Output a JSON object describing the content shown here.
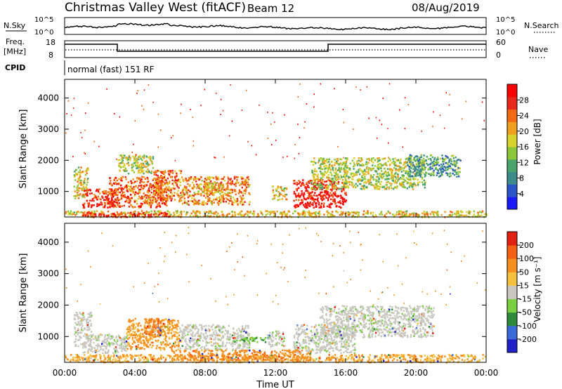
{
  "header": {
    "station": "Christmas Valley West (fitACF)",
    "beam": "Beam 12",
    "date": "08/Aug/2019"
  },
  "top_panels": {
    "nsky_label": "N.Sky",
    "nsky_top": "10^5",
    "nsky_bottom": "10^0",
    "nsearch_label": "N.Search",
    "nsearch_top": "10^5",
    "nsearch_bottom": "10^0",
    "freq_label": "Freq.",
    "freq_unit": "[MHz]",
    "freq_top": "18",
    "freq_bottom": "8",
    "nave_label": "Nave",
    "nave_top": "60",
    "nave_bottom": "0",
    "cpid_label": "CPID",
    "cpid_value": "normal (fast) 151 RF"
  },
  "chart_data": [
    {
      "type": "heatmap",
      "name": "power",
      "ylabel": "Slant Range [km]",
      "yticks": [
        "1000",
        "2000",
        "3000",
        "4000"
      ],
      "ylim": [
        180,
        4600
      ],
      "colorbar_label": "Power [dB]",
      "colorbar_ticks": [
        "4",
        "8",
        "12",
        "16",
        "20",
        "24",
        "28"
      ],
      "colorbar_colors": [
        "#1a1aff",
        "#2a55c8",
        "#3d8a8a",
        "#4aa36a",
        "#8cc63a",
        "#d7d22c",
        "#f0a020",
        "#f26a14",
        "#e8281a",
        "#ff0000"
      ],
      "regions": [
        {
          "t": [
            0.5,
            1.3
          ],
          "r": [
            800,
            1800
          ],
          "level": 0.55
        },
        {
          "t": [
            1.0,
            3.0
          ],
          "r": [
            500,
            1100
          ],
          "level": 0.9
        },
        {
          "t": [
            2.5,
            5.8
          ],
          "r": [
            500,
            1500
          ],
          "level": 0.8
        },
        {
          "t": [
            3.0,
            5.0
          ],
          "r": [
            1600,
            2200
          ],
          "level": 0.5
        },
        {
          "t": [
            5.0,
            6.6
          ],
          "r": [
            700,
            1700
          ],
          "level": 0.75
        },
        {
          "t": [
            6.6,
            10.5
          ],
          "r": [
            600,
            1500
          ],
          "level": 0.7
        },
        {
          "t": [
            7.5,
            9.0
          ],
          "r": [
            1000,
            1300
          ],
          "level": 0.6
        },
        {
          "t": [
            11.8,
            12.6
          ],
          "r": [
            750,
            1200
          ],
          "level": 0.55
        },
        {
          "t": [
            13.0,
            16.0
          ],
          "r": [
            500,
            1400
          ],
          "level": 0.95
        },
        {
          "t": [
            14.0,
            20.5
          ],
          "r": [
            1100,
            2100
          ],
          "level": 0.5
        },
        {
          "t": [
            19.5,
            22.5
          ],
          "r": [
            1500,
            2200
          ],
          "level": 0.3
        },
        {
          "t": [
            0.0,
            24.0
          ],
          "r": [
            200,
            400
          ],
          "level": 0.6
        },
        {
          "t": [
            1.0,
            6.0
          ],
          "r": [
            200,
            350
          ],
          "level": 0.95
        }
      ]
    },
    {
      "type": "heatmap",
      "name": "velocity",
      "xlabel": "Time UT",
      "xticks": [
        "00:00",
        "04:00",
        "08:00",
        "12:00",
        "16:00",
        "20:00",
        "00:00"
      ],
      "xlim": [
        0,
        24
      ],
      "ylabel": "Slant Range [km]",
      "yticks": [
        "1000",
        "2000",
        "3000",
        "4000"
      ],
      "ylim": [
        180,
        4600
      ],
      "colorbar_label": "Velocity [m s⁻¹]",
      "colorbar_ticks": [
        "200",
        "100",
        "50",
        "15",
        "-15",
        "-50",
        "-100",
        "-200"
      ],
      "colorbar_colors": [
        "#2020c8",
        "#3a6ad8",
        "#2e8a3a",
        "#7ad040",
        "#c8c8c0",
        "#f5c040",
        "#f59020",
        "#f26014",
        "#e02010"
      ],
      "regions": [
        {
          "t": [
            0.5,
            1.5
          ],
          "r": [
            700,
            1800
          ],
          "v": 0.0
        },
        {
          "t": [
            1.0,
            3.5
          ],
          "r": [
            500,
            1100
          ],
          "v": 0.0
        },
        {
          "t": [
            3.5,
            6.5
          ],
          "r": [
            600,
            1600
          ],
          "v": -0.6
        },
        {
          "t": [
            4.5,
            5.5
          ],
          "r": [
            1000,
            1600
          ],
          "v": -0.8
        },
        {
          "t": [
            6.5,
            10.5
          ],
          "r": [
            600,
            1400
          ],
          "v": 0.0
        },
        {
          "t": [
            9.5,
            11.5
          ],
          "r": [
            850,
            1000
          ],
          "v": 0.4
        },
        {
          "t": [
            11.5,
            12.5
          ],
          "r": [
            700,
            1200
          ],
          "v": 0.0
        },
        {
          "t": [
            13.0,
            16.5
          ],
          "r": [
            500,
            1400
          ],
          "v": 0.0
        },
        {
          "t": [
            14.5,
            21.0
          ],
          "r": [
            1000,
            2000
          ],
          "v": 0.0
        },
        {
          "t": [
            0.0,
            24.0
          ],
          "r": [
            200,
            450
          ],
          "v": -0.5
        },
        {
          "t": [
            6.0,
            14.0
          ],
          "r": [
            250,
            600
          ],
          "v": -0.7
        }
      ]
    }
  ]
}
